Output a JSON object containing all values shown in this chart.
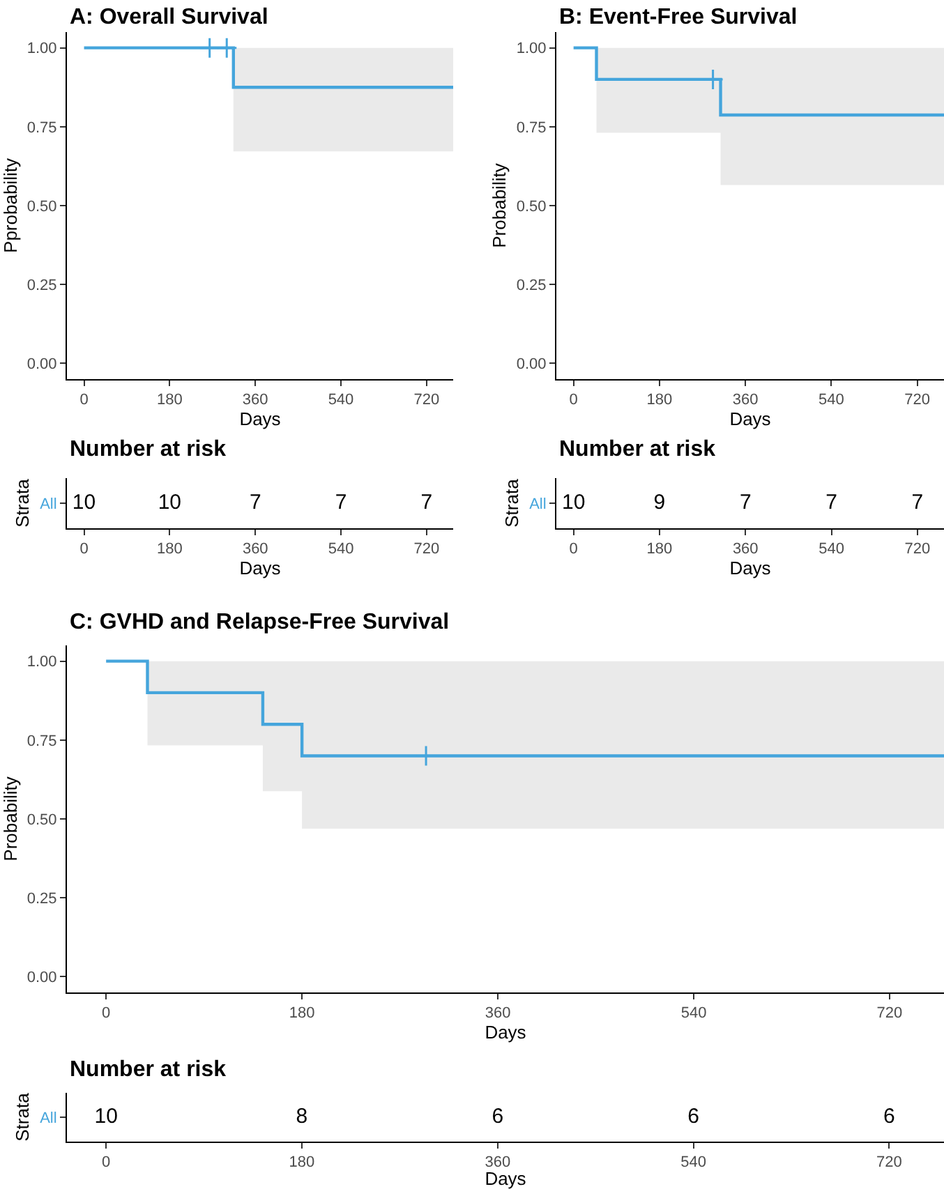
{
  "chart_data": [
    {
      "type": "step",
      "title": "A: Overall Survival",
      "xlabel": "Days",
      "ylabel": "Pprobability",
      "xlim": [
        -36,
        776
      ],
      "xticks": [
        0,
        180,
        360,
        540,
        720
      ],
      "ylim": [
        -0.05,
        1.05
      ],
      "yticks": [
        {
          "value": 0,
          "label": "0.00"
        },
        {
          "value": 0.25,
          "label": "0.25"
        },
        {
          "value": 0.5,
          "label": "0.50"
        },
        {
          "value": 0.75,
          "label": "0.75"
        },
        {
          "value": 1,
          "label": "1.00"
        }
      ],
      "series": [
        {
          "type": "step",
          "color": "#45a5dc",
          "x": [
            0,
            314,
            776
          ],
          "values": [
            1,
            0.875,
            0.875
          ],
          "lower": [
            1,
            0.672,
            0.672
          ],
          "upper": [
            1,
            1,
            1
          ]
        },
        {
          "type": "scatter",
          "marker": "cross",
          "color": "#45a5dc",
          "x": [
            264,
            300
          ],
          "values": [
            1,
            1
          ]
        }
      ]
    },
    {
      "type": "step",
      "title": "B: Event-Free Survival",
      "xlabel": "Days",
      "ylabel": "Probability",
      "xlim": [
        -36,
        776
      ],
      "xticks": [
        0,
        180,
        360,
        540,
        720
      ],
      "ylim": [
        -0.05,
        1.05
      ],
      "yticks": [
        {
          "value": 0,
          "label": "0.00"
        },
        {
          "value": 0.25,
          "label": "0.25"
        },
        {
          "value": 0.5,
          "label": "0.50"
        },
        {
          "value": 0.75,
          "label": "0.75"
        },
        {
          "value": 1,
          "label": "1.00"
        }
      ],
      "series": [
        {
          "type": "step",
          "color": "#45a5dc",
          "x": [
            0,
            48,
            308,
            776
          ],
          "values": [
            1,
            0.9,
            0.787,
            0.787
          ],
          "lower": [
            1,
            0.731,
            0.565,
            0.565
          ],
          "upper": [
            1,
            1,
            1,
            1
          ]
        },
        {
          "type": "scatter",
          "marker": "cross",
          "color": "#45a5dc",
          "x": [
            292
          ],
          "values": [
            0.9
          ]
        }
      ]
    },
    {
      "type": "heatmap",
      "title": "Number at risk",
      "xlabel": "Days",
      "ylabel": "Strata",
      "categories": [
        "0",
        "180",
        "360",
        "540",
        "720"
      ],
      "y_categories": [
        "All"
      ],
      "cells": [
        [
          10,
          10,
          7,
          7,
          7
        ]
      ],
      "data_labels": true
    },
    {
      "type": "heatmap",
      "title": "Number at risk",
      "xlabel": "Days",
      "ylabel": "Strata",
      "categories": [
        "0",
        "180",
        "360",
        "540",
        "720"
      ],
      "y_categories": [
        "All"
      ],
      "cells": [
        [
          10,
          9,
          7,
          7,
          7
        ]
      ],
      "data_labels": true
    },
    {
      "type": "step",
      "title": "C: GVHD and Relapse-Free Survival",
      "xlabel": "Days",
      "ylabel": "Probability",
      "xlim": [
        -36,
        770
      ],
      "xticks": [
        0,
        180,
        360,
        540,
        720
      ],
      "ylim": [
        -0.05,
        1.05
      ],
      "yticks": [
        {
          "value": 0,
          "label": "0.00"
        },
        {
          "value": 0.25,
          "label": "0.25"
        },
        {
          "value": 0.5,
          "label": "0.50"
        },
        {
          "value": 0.75,
          "label": "0.75"
        },
        {
          "value": 1,
          "label": "1.00"
        }
      ],
      "series": [
        {
          "type": "step",
          "color": "#45a5dc",
          "x": [
            0,
            38,
            144,
            180,
            770
          ],
          "values": [
            1,
            0.9,
            0.8,
            0.7,
            0.7
          ],
          "lower": [
            1,
            0.733,
            0.588,
            0.469,
            0.469
          ],
          "upper": [
            1,
            1,
            1,
            1,
            1
          ]
        },
        {
          "type": "scatter",
          "marker": "cross",
          "color": "#45a5dc",
          "x": [
            294
          ],
          "values": [
            0.7
          ]
        }
      ]
    },
    {
      "type": "heatmap",
      "title": "Number at risk",
      "xlabel": "Days",
      "ylabel": "Strata",
      "categories": [
        "0",
        "180",
        "360",
        "540",
        "720"
      ],
      "y_categories": [
        "All"
      ],
      "cells": [
        [
          10,
          8,
          6,
          6,
          6
        ]
      ],
      "data_labels": true
    }
  ]
}
